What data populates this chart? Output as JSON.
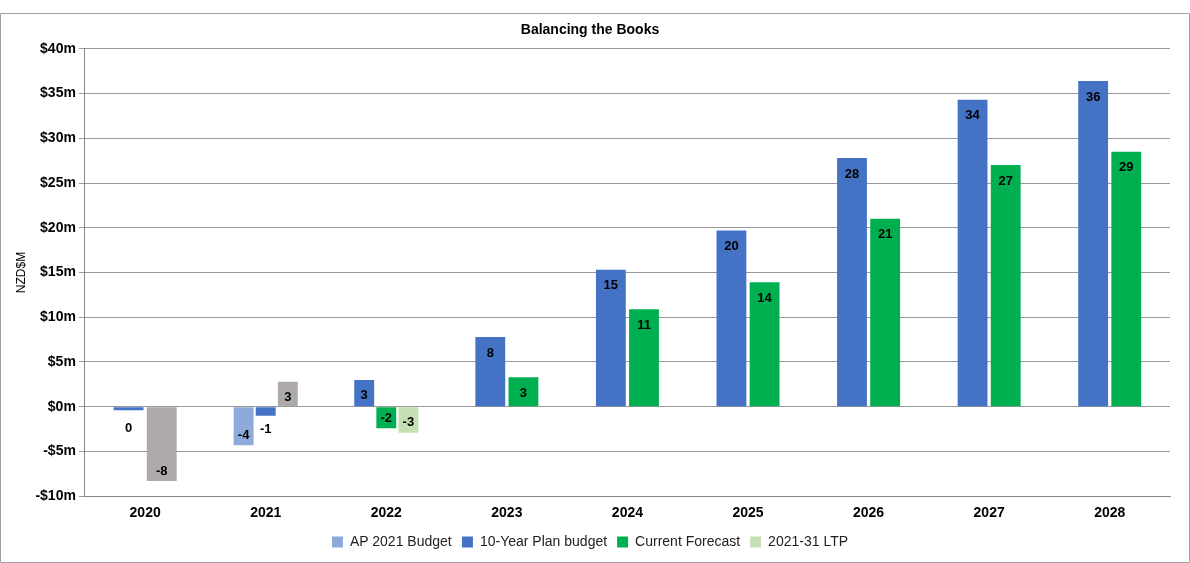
{
  "chart_data": {
    "type": "bar",
    "title": "Balancing the Books",
    "ylabel": "NZD$M",
    "categories": [
      "2020",
      "2021",
      "2022",
      "2023",
      "2024",
      "2025",
      "2026",
      "2027",
      "2028"
    ],
    "series": [
      {
        "name": "AP 2021 Budget",
        "color": "#8eaadb",
        "values": [
          null,
          -4.3,
          null,
          null,
          null,
          null,
          null,
          null,
          null
        ],
        "value_labels": [
          null,
          "-4",
          null,
          null,
          null,
          null,
          null,
          null,
          null
        ]
      },
      {
        "name": "10-Year Plan budget",
        "color": "#4472c4",
        "values": [
          -0.4,
          -1.0,
          3.0,
          7.8,
          15.3,
          19.7,
          27.8,
          34.3,
          36.4
        ],
        "value_labels": [
          "0",
          "-1",
          "3",
          "8",
          "15",
          "20",
          "28",
          "34",
          "36"
        ]
      },
      {
        "name": "Current Forecast",
        "color": "#00b050",
        "values": [
          null,
          null,
          -2.4,
          3.3,
          10.9,
          13.9,
          21.0,
          27.0,
          28.5
        ],
        "value_labels": [
          null,
          null,
          "-2",
          "3",
          "11",
          "14",
          "21",
          "27",
          "29"
        ]
      },
      {
        "name": "2021-31 LTP",
        "color": "#c5e0b4",
        "values": [
          null,
          null,
          -2.9,
          null,
          null,
          null,
          null,
          null,
          null
        ],
        "value_labels": [
          null,
          null,
          "-3",
          null,
          null,
          null,
          null,
          null,
          null
        ]
      },
      {
        "color": "#aeaaaa",
        "values": [
          -8.3,
          2.8,
          null,
          null,
          null,
          null,
          null,
          null,
          null
        ],
        "value_labels": [
          "-8",
          "3",
          null,
          null,
          null,
          null,
          null,
          null,
          null
        ]
      }
    ],
    "ylim": [
      -10,
      40
    ],
    "yticks": [
      {
        "value": -10,
        "label": "-$10m"
      },
      {
        "value": -5,
        "label": "-$5m"
      },
      {
        "value": 0,
        "label": "$0m"
      },
      {
        "value": 5,
        "label": "$5m"
      },
      {
        "value": 10,
        "label": "$10m"
      },
      {
        "value": 15,
        "label": "$15m"
      },
      {
        "value": 20,
        "label": "$20m"
      },
      {
        "value": 25,
        "label": "$25m"
      },
      {
        "value": 30,
        "label": "$30m"
      },
      {
        "value": 35,
        "label": "$35m"
      },
      {
        "value": 40,
        "label": "$40m"
      }
    ],
    "grid": "y",
    "legend": "bottom"
  }
}
